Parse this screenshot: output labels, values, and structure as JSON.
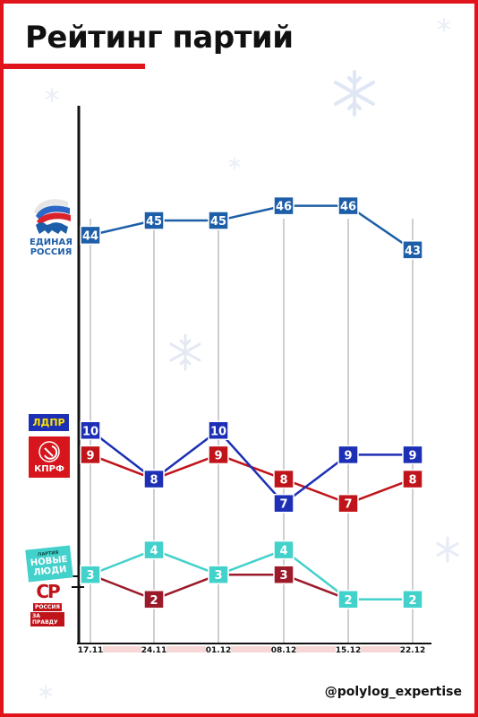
{
  "header": {
    "title": "Рейтинг партий"
  },
  "footer": {
    "handle": "@polylog_expertise"
  },
  "logos": {
    "er_line1": "ЕДИНАЯ",
    "er_line2": "РОССИЯ",
    "ldpr": "ЛДПР",
    "kprf": "КПРФ",
    "nl_small": "ПАРТИЯ",
    "nl_line1": "НОВЫЕ",
    "nl_line2": "ЛЮДИ",
    "sr_mark": "СР",
    "sr_line1": "РОССИЯ",
    "sr_line2": "ЗА ПРАВДУ"
  },
  "chart_data": {
    "type": "line",
    "categories": [
      "17.11",
      "24.11",
      "01.12",
      "08.12",
      "15.12",
      "22.12"
    ],
    "series": [
      {
        "name": "ЕДИНАЯ РОССИЯ",
        "color": "#1d5ea8",
        "values": [
          44,
          45,
          45,
          46,
          46,
          43
        ]
      },
      {
        "name": "ЛДПР",
        "color": "#1c2fb5",
        "values": [
          10,
          8,
          10,
          7,
          9,
          9
        ]
      },
      {
        "name": "КПРФ",
        "color": "#c0141b",
        "values": [
          9,
          8,
          9,
          8,
          7,
          8
        ]
      },
      {
        "name": "НОВЫЕ ЛЮДИ",
        "color": "#43d1cb",
        "values": [
          3,
          4,
          3,
          4,
          2,
          2
        ]
      },
      {
        "name": "СР — ЗА ПРАВДУ",
        "color": "#9b1b2a",
        "values": [
          3,
          2,
          3,
          3,
          2,
          2
        ]
      }
    ],
    "grid": "vertical",
    "legend": "left",
    "colors": {
      "frame": "#e0141b",
      "grid": "#cfcfcf",
      "axis": "#111111",
      "tick_band": "#f7d6d6"
    }
  }
}
